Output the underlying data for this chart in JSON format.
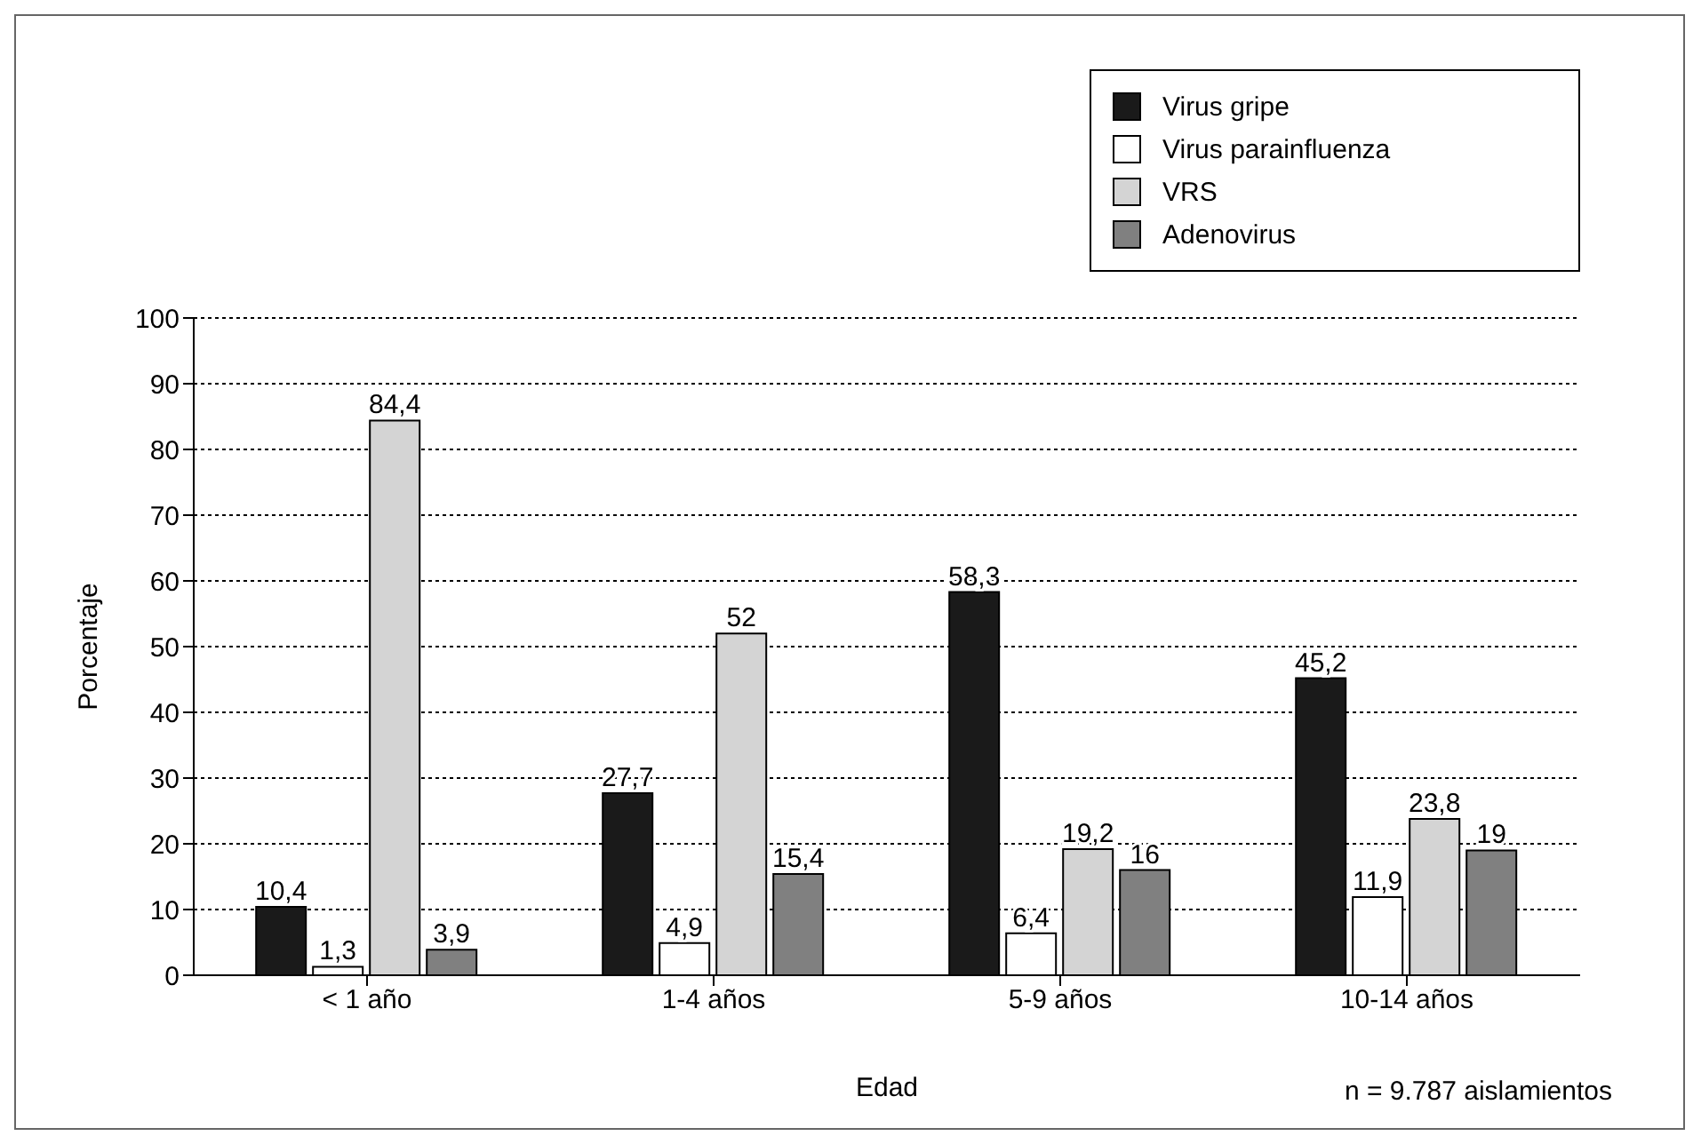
{
  "chart_data": {
    "type": "bar",
    "xlabel": "Edad",
    "ylabel": "Porcentaje",
    "categories": [
      "< 1 año",
      "1-4 años",
      "5-9 años",
      "10-14 años"
    ],
    "series": [
      {
        "name": "Virus gripe",
        "color": "#1a1a1a",
        "values": [
          10.4,
          27.7,
          58.3,
          45.2
        ],
        "value_labels": [
          "10,4",
          "27,7",
          "58,3",
          "45,2"
        ]
      },
      {
        "name": "Virus parainfluenza",
        "color": "#ffffff",
        "values": [
          1.3,
          4.9,
          6.4,
          11.9
        ],
        "value_labels": [
          "1,3",
          "4,9",
          "6,4",
          "11,9"
        ]
      },
      {
        "name": "VRS",
        "color": "#d4d4d4",
        "values": [
          84.4,
          52,
          19.2,
          23.8
        ],
        "value_labels": [
          "84,4",
          "52",
          "19,2",
          "23,8"
        ]
      },
      {
        "name": "Adenovirus",
        "color": "#808080",
        "values": [
          3.9,
          15.4,
          16,
          19
        ],
        "value_labels": [
          "3,9",
          "15,4",
          "16",
          "19"
        ]
      }
    ],
    "ylim": [
      0,
      100
    ],
    "yticks": [
      0,
      10,
      20,
      30,
      40,
      50,
      60,
      70,
      80,
      90,
      100
    ],
    "grid": "y",
    "legend": "top right",
    "annotations": [
      "n = 9.787 aislamientos"
    ]
  }
}
